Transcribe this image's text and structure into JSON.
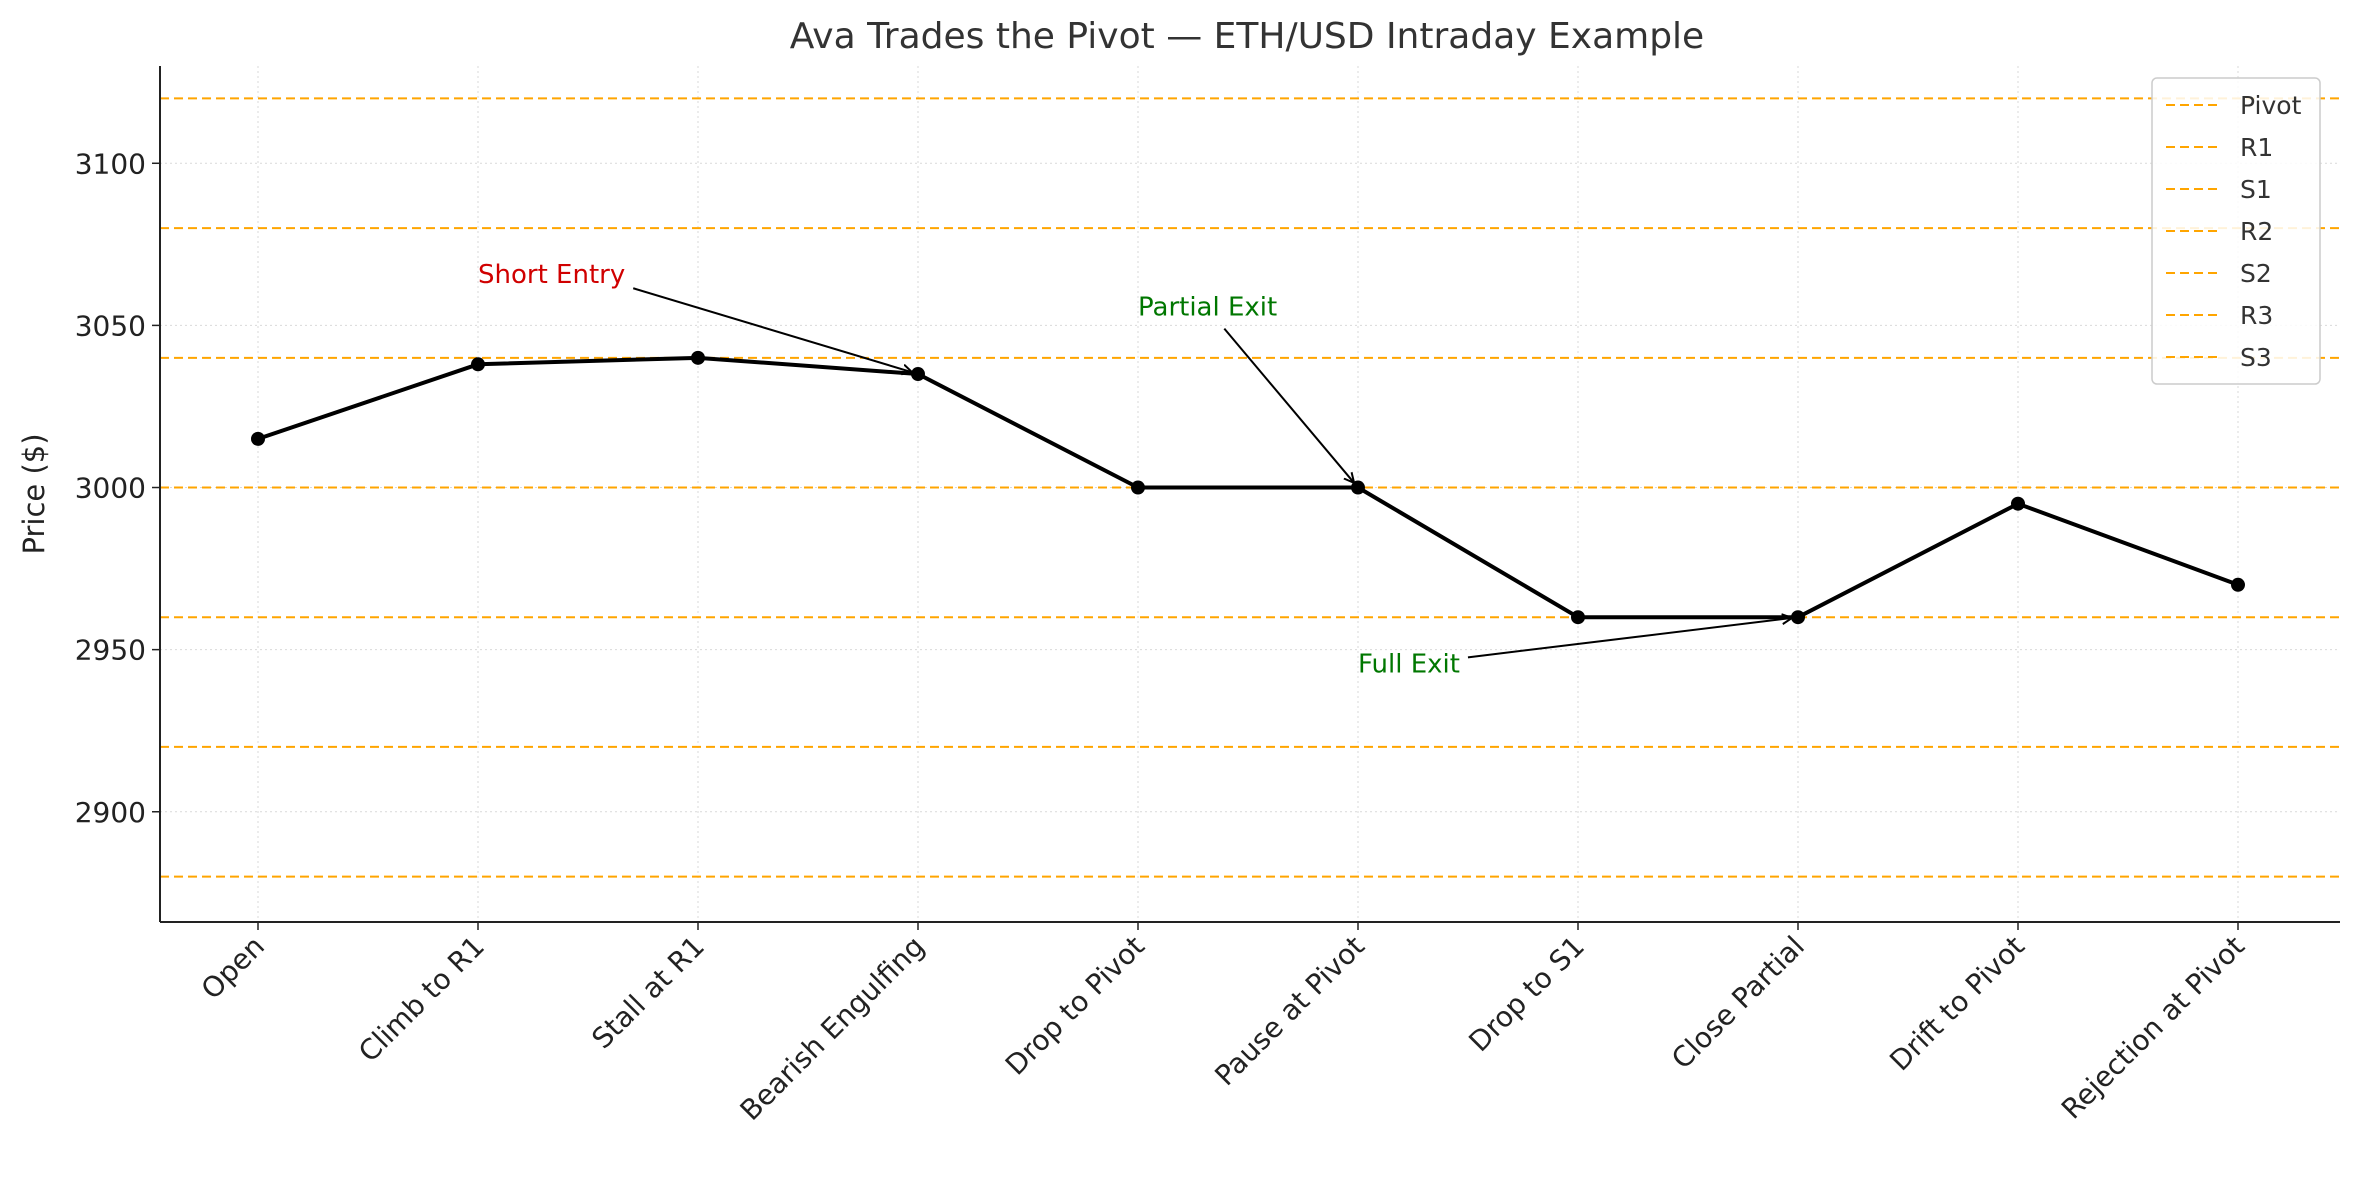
{
  "chart_data": {
    "type": "line",
    "title": "Ava Trades the Pivot — ETH/USD Intraday Example",
    "xlabel": "",
    "ylabel": "Price ($)",
    "categories": [
      "Open",
      "Climb to R1",
      "Stall at R1",
      "Bearish Engulfing",
      "Drop to Pivot",
      "Pause at Pivot",
      "Drop to S1",
      "Close Partial",
      "Drift to Pivot",
      "Rejection at Pivot"
    ],
    "series": [
      {
        "name": "",
        "values": [
          3015,
          3038,
          3040,
          3035,
          3000,
          3000,
          2960,
          2960,
          2995,
          2970
        ],
        "color": "#000000"
      }
    ],
    "ylim": [
      2866,
      3130
    ],
    "yticks": [
      2900,
      2950,
      3000,
      3050,
      3100
    ],
    "grid": true,
    "levels": [
      {
        "name": "Pivot",
        "value": 3000
      },
      {
        "name": "R1",
        "value": 3040
      },
      {
        "name": "S1",
        "value": 2960
      },
      {
        "name": "R2",
        "value": 3080
      },
      {
        "name": "S2",
        "value": 2920
      },
      {
        "name": "R3",
        "value": 3120
      },
      {
        "name": "S3",
        "value": 2880
      }
    ],
    "level_color": "#FFA500",
    "legend_position": "top-right",
    "annotations": [
      {
        "text": "Short Entry",
        "color": "#D00000",
        "target_index": 3,
        "text_index": 1.0,
        "text_value": 3063
      },
      {
        "text": "Partial Exit",
        "color": "#007700",
        "target_index": 5,
        "text_index": 4.0,
        "text_value": 3053
      },
      {
        "text": "Full Exit",
        "color": "#007700",
        "target_index": 7,
        "text_index": 5.0,
        "text_value": 2943
      }
    ]
  }
}
